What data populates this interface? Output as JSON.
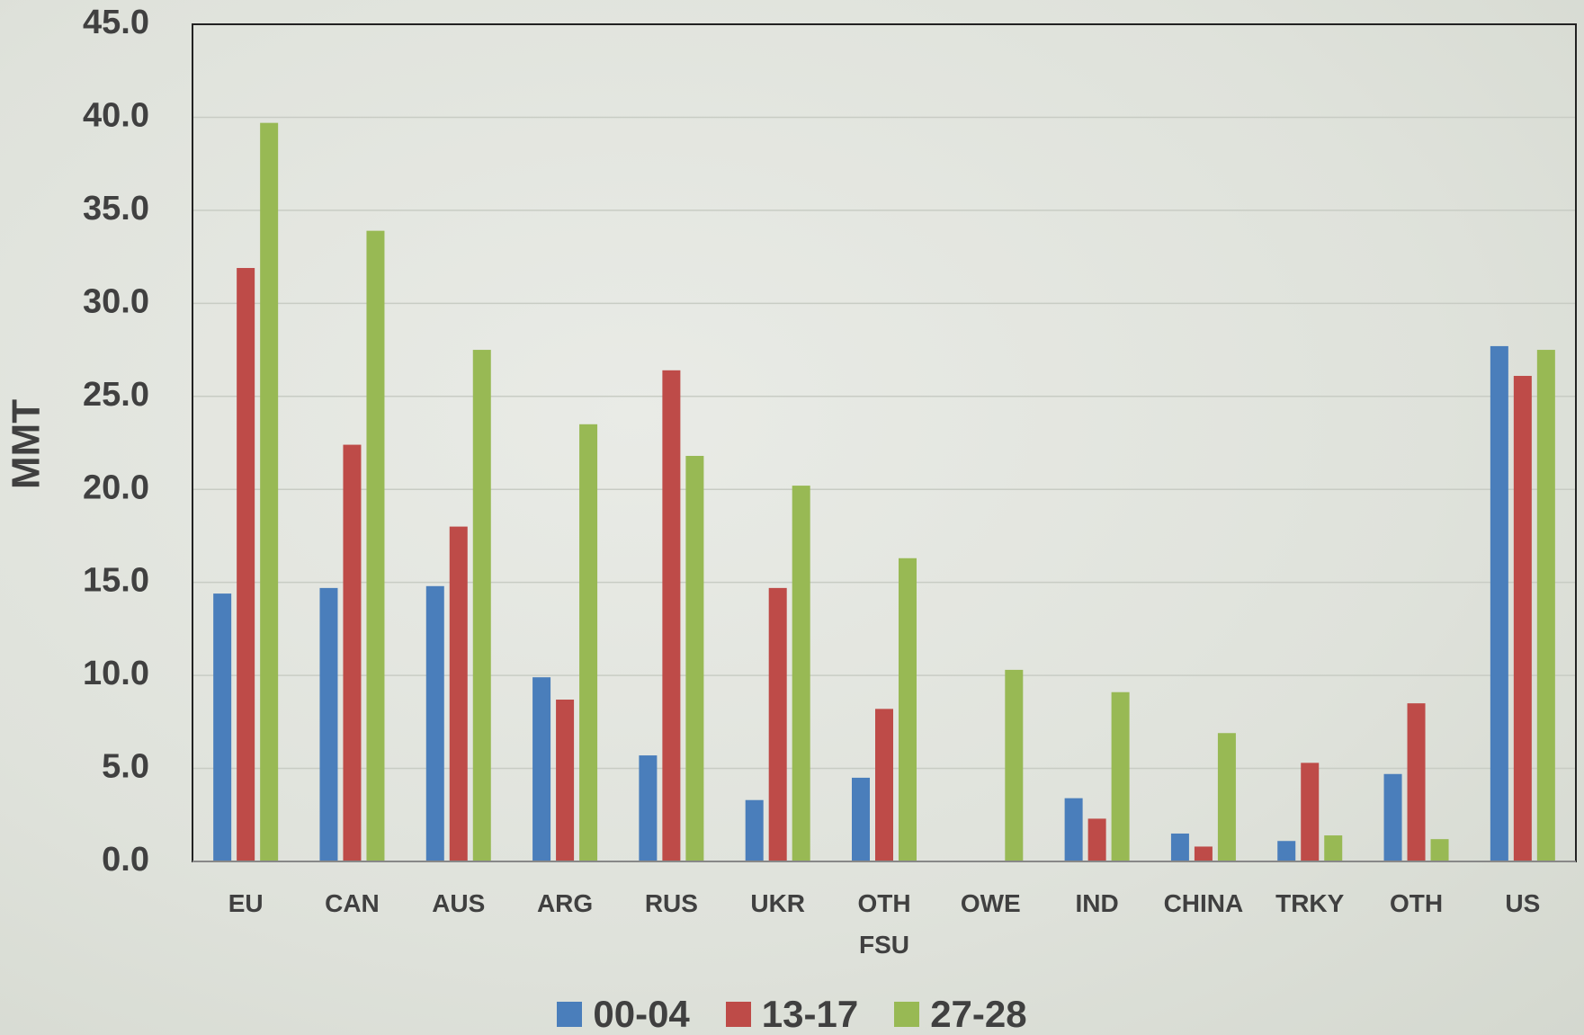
{
  "chart_data": {
    "type": "bar",
    "y_label": "MMT",
    "categories": [
      "EU",
      "CAN",
      "AUS",
      "ARG",
      "RUS",
      "UKR",
      "OTH FSU",
      "OWE",
      "IND",
      "CHINA",
      "TRKY",
      "OTH",
      "US"
    ],
    "series": [
      {
        "name": "00-04",
        "color": "#4a7ebb",
        "values": [
          14.4,
          14.7,
          14.8,
          9.9,
          5.7,
          3.3,
          4.5,
          0,
          3.4,
          1.5,
          1.1,
          4.7,
          27.7
        ]
      },
      {
        "name": "13-17",
        "color": "#be4b48",
        "values": [
          31.9,
          22.4,
          18.0,
          8.7,
          26.4,
          14.7,
          8.2,
          0,
          2.3,
          0.8,
          5.3,
          8.5,
          26.1
        ]
      },
      {
        "name": "27-28",
        "color": "#98b954",
        "values": [
          39.7,
          33.9,
          27.5,
          23.5,
          21.8,
          20.2,
          16.3,
          10.3,
          9.1,
          6.9,
          1.4,
          1.2,
          27.5
        ]
      }
    ],
    "ylim": [
      0,
      45
    ],
    "yticks": [
      {
        "value": 0,
        "label": "0.0"
      },
      {
        "value": 5,
        "label": "5.0"
      },
      {
        "value": 10,
        "label": "10.0"
      },
      {
        "value": 15,
        "label": "15.0"
      },
      {
        "value": 20,
        "label": "20.0"
      },
      {
        "value": 25,
        "label": "25.0"
      },
      {
        "value": 30,
        "label": "30.0"
      },
      {
        "value": 35,
        "label": "35.0"
      },
      {
        "value": 40,
        "label": "40.0"
      },
      {
        "value": 45,
        "label": "45.0"
      }
    ],
    "grid": true
  }
}
